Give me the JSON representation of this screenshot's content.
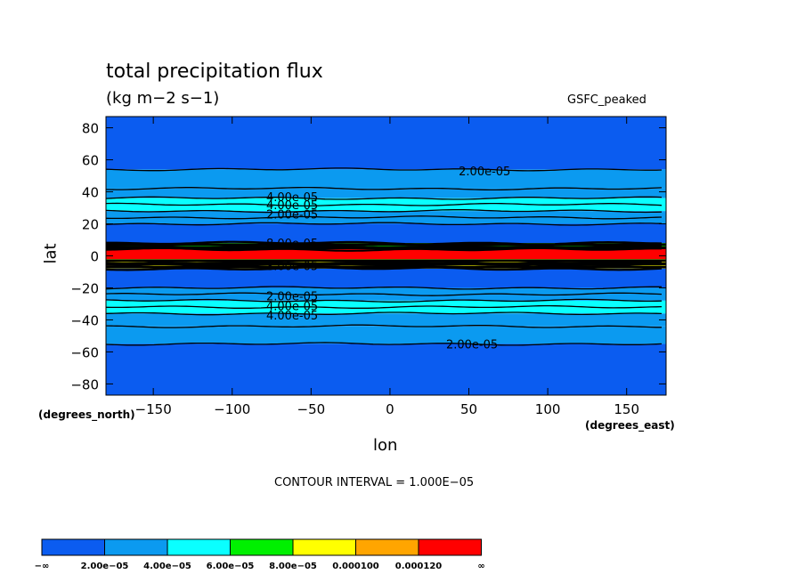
{
  "chart_data": {
    "type": "heatmap",
    "title": "total precipitation flux",
    "units_label": "(kg m−2 s−1)",
    "model_label": "GSFC_peaked",
    "xlabel": "lon",
    "ylabel": "lat",
    "x_units": "(degrees_east)",
    "y_units": "(degrees_north)",
    "xlim": [
      -180,
      175
    ],
    "ylim": [
      -87,
      87
    ],
    "x_ticks": [
      -150,
      -100,
      -50,
      0,
      50,
      100,
      150
    ],
    "y_ticks": [
      -80,
      -60,
      -40,
      -20,
      0,
      20,
      40,
      60,
      80
    ],
    "x_tick_labels": [
      "−150",
      "−100",
      "−50",
      "0",
      "50",
      "100",
      "150"
    ],
    "y_tick_labels": [
      "−80",
      "−60",
      "−40",
      "−20",
      "0",
      "20",
      "40",
      "60",
      "80"
    ],
    "contour_interval_text": "CONTOUR INTERVAL = 1.000E−05",
    "latitude_bands": [
      {
        "lat_min": 54,
        "lat_max": 87,
        "level": 0
      },
      {
        "lat_min": 42,
        "lat_max": 54,
        "level": 1
      },
      {
        "lat_min": 36,
        "lat_max": 42,
        "level": 1
      },
      {
        "lat_min": 28,
        "lat_max": 36,
        "level": 2
      },
      {
        "lat_min": 20,
        "lat_max": 28,
        "level": 1
      },
      {
        "lat_min": 8,
        "lat_max": 20,
        "level": 0
      },
      {
        "lat_min": 5,
        "lat_max": 8,
        "level": 3
      },
      {
        "lat_min": -2,
        "lat_max": 5,
        "level": 6
      },
      {
        "lat_min": -8,
        "lat_max": -2,
        "level": 4
      },
      {
        "lat_min": -20,
        "lat_max": -8,
        "level": 0
      },
      {
        "lat_min": -28,
        "lat_max": -20,
        "level": 1
      },
      {
        "lat_min": -36,
        "lat_max": -28,
        "level": 2
      },
      {
        "lat_min": -44,
        "lat_max": -36,
        "level": 1
      },
      {
        "lat_min": -55,
        "lat_max": -44,
        "level": 1
      },
      {
        "lat_min": -87,
        "lat_max": -55,
        "level": 0
      }
    ],
    "contour_lines_lat": [
      54,
      42,
      36,
      32,
      28,
      24,
      20,
      8,
      6,
      4,
      -4,
      -6,
      -8,
      -20,
      -24,
      -28,
      -32,
      -36,
      -44,
      -55
    ],
    "contour_labels": [
      {
        "text": "2.00e-05",
        "lon": 60,
        "lat": 53
      },
      {
        "text": "4.00e-05",
        "lon": -62,
        "lat": 37
      },
      {
        "text": "4.00e-05",
        "lon": -62,
        "lat": 32
      },
      {
        "text": "2.00e-05",
        "lon": -62,
        "lat": 26
      },
      {
        "text": "8.00e-05",
        "lon": -62,
        "lat": 8
      },
      {
        "text": "8.00e-05",
        "lon": -62,
        "lat": -6
      },
      {
        "text": "2.00e-05",
        "lon": -62,
        "lat": -25
      },
      {
        "text": "4.00e-05",
        "lon": -62,
        "lat": -31
      },
      {
        "text": "4.00e-05",
        "lon": -62,
        "lat": -37
      },
      {
        "text": "2.00e-05",
        "lon": 52,
        "lat": -55
      }
    ],
    "colorbar": {
      "colors": [
        "#0b5cf0",
        "#0b9af0",
        "#0affff",
        "#00f000",
        "#ffff00",
        "#ffa500",
        "#ff0000"
      ],
      "boundary_labels": [
        "−∞",
        "2.00e−05",
        "4.00e−05",
        "6.00e−05",
        "8.00e−05",
        "0.000100",
        "0.000120",
        "∞"
      ]
    },
    "black_line_color": "#000000"
  }
}
